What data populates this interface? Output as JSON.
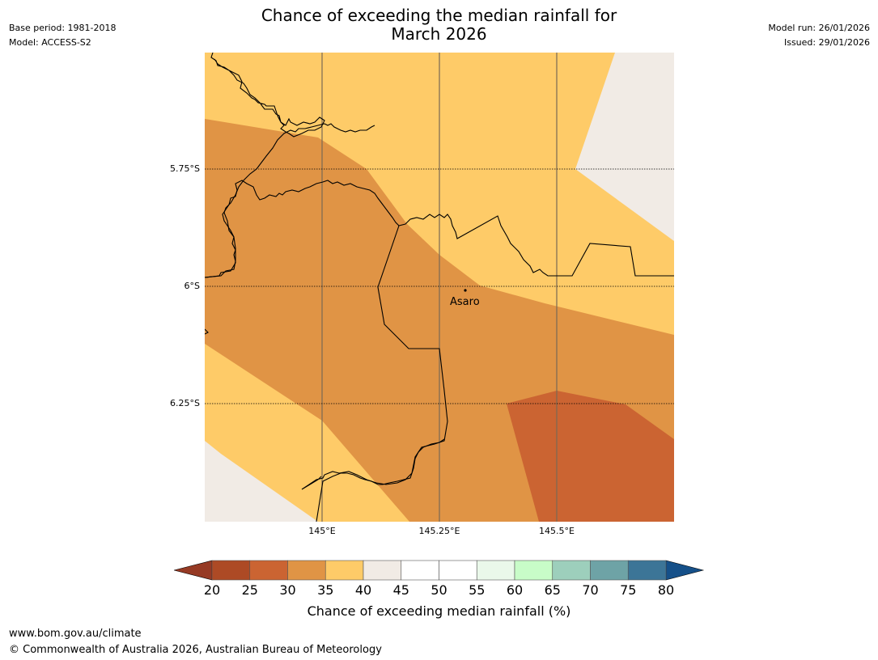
{
  "title": {
    "line1": "Chance of exceeding the median rainfall for",
    "line2": "March 2026"
  },
  "meta_left": {
    "base_period": "Base period: 1981-2018",
    "model": "Model: ACCESS-S2"
  },
  "meta_right": {
    "model_run": "Model run: 26/01/2026",
    "issued": "Issued: 29/01/2026"
  },
  "map": {
    "lat_labels": [
      "5.75°S",
      "6°S",
      "6.25°S"
    ],
    "lon_labels": [
      "145°E",
      "145.25°E",
      "145.5°E"
    ],
    "place": "Asaro",
    "colors": {
      "c30_35": "#e09445",
      "c25_30": "#cb6432",
      "c35_40": "#fecb68",
      "c40_45": "#f1ebe5",
      "border": "#000000",
      "meridian": "#7a6a55",
      "parallel": "#000000"
    }
  },
  "colorbar": {
    "ticks": [
      "20",
      "25",
      "30",
      "35",
      "40",
      "45",
      "50",
      "55",
      "60",
      "65",
      "70",
      "75",
      "80"
    ],
    "colors": [
      "#ad4a25",
      "#cb6432",
      "#e09445",
      "#fecb68",
      "#f1ebe5",
      "#ffffff",
      "#ffffff",
      "#eaf8ea",
      "#c8fcc8",
      "#9dcfbc",
      "#6ea3a6",
      "#3c7597"
    ],
    "under_color": "#963a24",
    "over_color": "#155089",
    "label": "Chance of exceeding median rainfall (%)"
  },
  "footer": {
    "url": "www.bom.gov.au/climate",
    "copyright": "© Commonwealth of Australia 2026, Australian Bureau of Meteorology"
  }
}
